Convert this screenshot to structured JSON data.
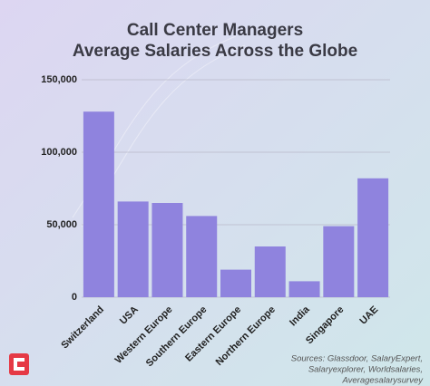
{
  "chart_data": {
    "type": "bar",
    "title": [
      "Call Center Managers",
      "Average Salaries Across the Globe"
    ],
    "categories": [
      "Switzerland",
      "USA",
      "Western Europe",
      "Southern Europe",
      "Eastern Europe",
      "Northern Europe",
      "India",
      "Singapore",
      "UAE"
    ],
    "values": [
      128000,
      66000,
      65000,
      56000,
      19000,
      35000,
      11000,
      49000,
      82000
    ],
    "color": "#8f83de",
    "ylim": [
      0,
      150000
    ],
    "yticks": [
      0,
      {
        "value": 50000,
        "label": "50,000"
      },
      {
        "value": 100000,
        "label": "100,000"
      },
      {
        "value": 150000,
        "label": "150,000"
      }
    ],
    "grid": true,
    "source": [
      "Sources: Glassdoor, SalaryExpert,",
      "Salaryexplorer, Worldsalaries,",
      "Averagesalarysurvey"
    ]
  }
}
